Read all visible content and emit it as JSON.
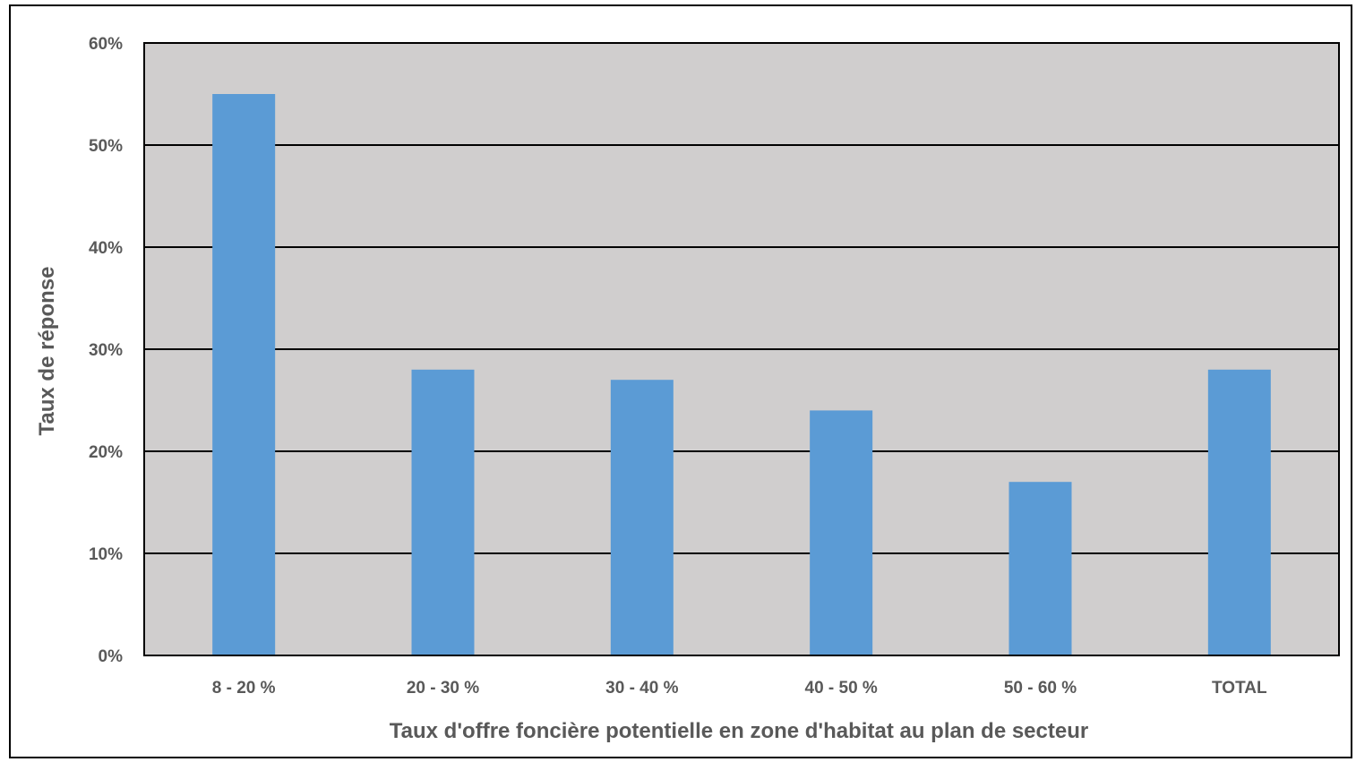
{
  "chart_data": {
    "type": "bar",
    "categories": [
      "8 - 20 %",
      "20 - 30 %",
      "30 - 40 %",
      "40 - 50 %",
      "50 - 60 %",
      "TOTAL"
    ],
    "values": [
      55,
      28,
      27,
      24,
      17,
      28
    ],
    "xlabel": "Taux d'offre foncière potentielle en zone d'habitat au plan de secteur",
    "ylabel": "Taux de réponse",
    "ylim": [
      0,
      60
    ],
    "yticks": [
      0,
      10,
      20,
      30,
      40,
      50,
      60
    ],
    "ytick_labels": [
      "0%",
      "10%",
      "20%",
      "30%",
      "40%",
      "50%",
      "60%"
    ],
    "grid": true,
    "legend": "none",
    "colors": {
      "bar": "#5B9BD5",
      "plot_background": "#D0CECE",
      "gridline": "#000000",
      "text": "#595959"
    }
  }
}
